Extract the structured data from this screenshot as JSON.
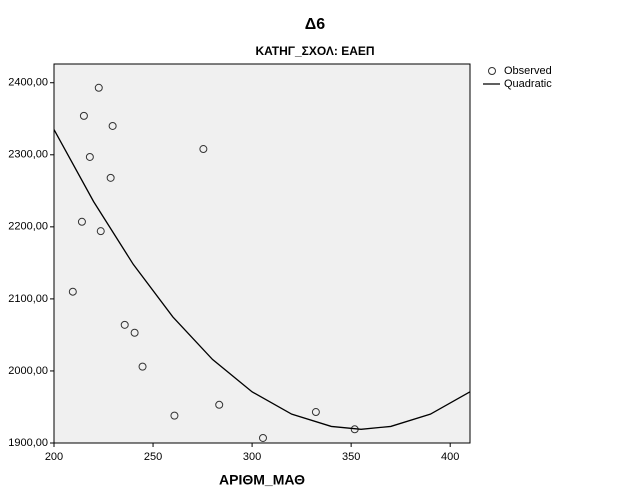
{
  "chart_data": {
    "type": "scatter",
    "title": "Δ6",
    "subtitle": "ΚΑΤΗΓ_ΣΧΟΛ: ΕΑΕΠ",
    "x_label": "ΑΡΙΘΜ_ΜΑΘ",
    "xlim": [
      200,
      410
    ],
    "ylim": [
      1900,
      2426
    ],
    "xticks": [
      200,
      250,
      300,
      350,
      400
    ],
    "yticks": [
      {
        "value": 1900,
        "label": "1900,00"
      },
      {
        "value": 2000,
        "label": "2000,00"
      },
      {
        "value": 2100,
        "label": "2100,00"
      },
      {
        "value": 2200,
        "label": "2200,00"
      },
      {
        "value": 2300,
        "label": "2300,00"
      },
      {
        "value": 2400,
        "label": "2400,00"
      }
    ],
    "legend": "right",
    "series": [
      {
        "name": "Observed",
        "kind": "points",
        "color": "#333333",
        "x": [
          222.6,
          215.1,
          229.6,
          218.1,
          275.4,
          228.6,
          214.1,
          223.6,
          209.5,
          235.7,
          240.7,
          244.7,
          260.8,
          283.4,
          305.5,
          332.2,
          351.8
        ],
        "values": [
          2393,
          2354,
          2340,
          2297,
          2308,
          2268,
          2207,
          2194,
          2110,
          2064,
          2053,
          2006,
          1938,
          1953,
          1907,
          1943,
          1919
        ]
      },
      {
        "name": "Quadratic",
        "kind": "line",
        "color": "#000000",
        "x": [
          200,
          220,
          240,
          260,
          280,
          300,
          320,
          340,
          355,
          370,
          390,
          410
        ],
        "values": [
          2335,
          2235,
          2148,
          2075,
          2016,
          1971,
          1940,
          1923,
          1919,
          1923,
          1940,
          1971
        ]
      }
    ]
  }
}
